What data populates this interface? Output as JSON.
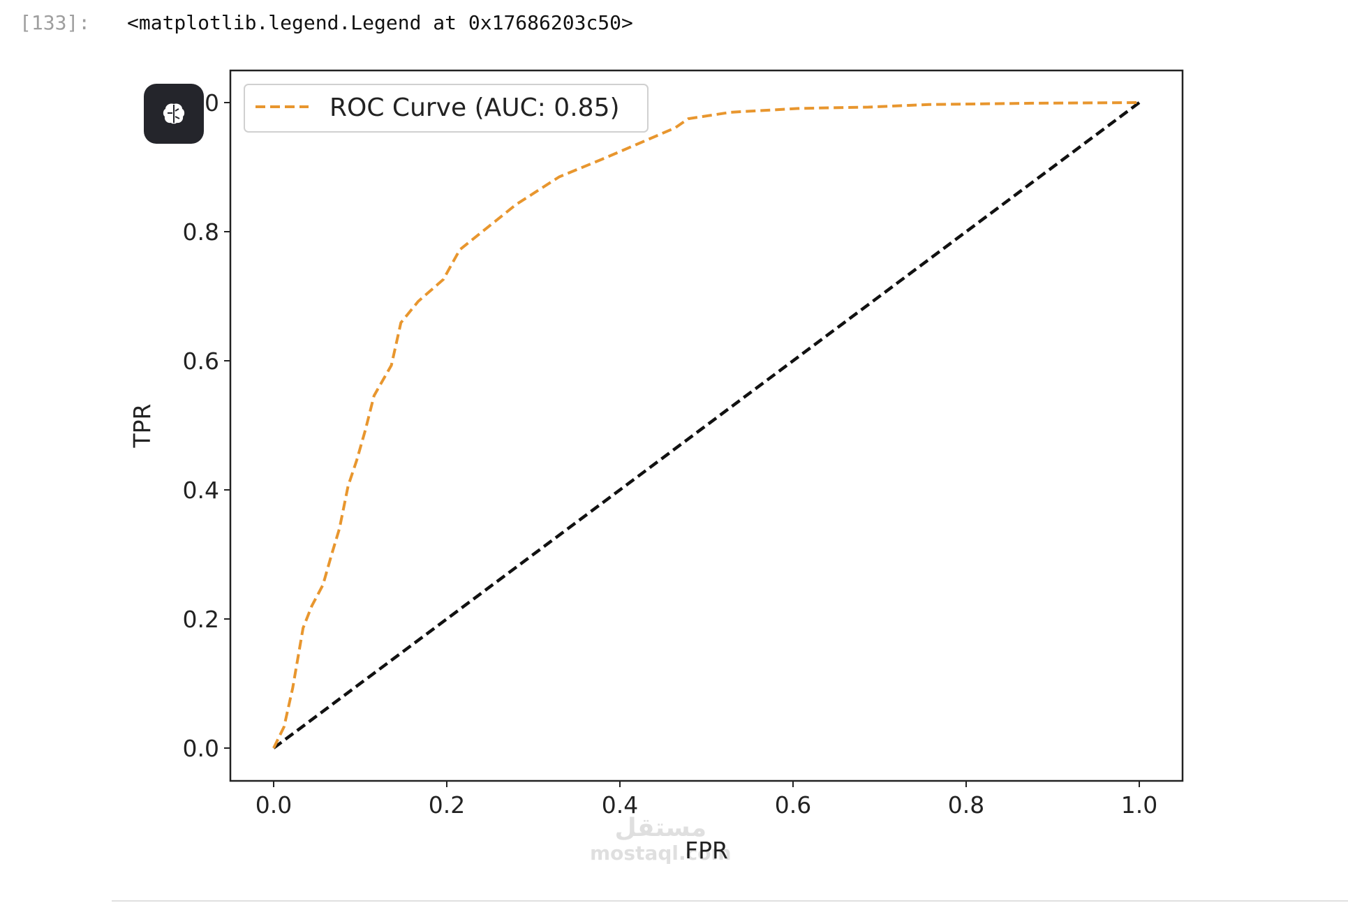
{
  "cell": {
    "prompt": "[133]:",
    "output_text": "<matplotlib.legend.Legend at 0x17686203c50>"
  },
  "badge_icon": "brain-icon",
  "watermark": "مستقل mostaql.com",
  "chart_data": {
    "type": "line",
    "title": "",
    "xlabel": "FPR",
    "ylabel": "TPR",
    "xlim": [
      -0.05,
      1.05
    ],
    "ylim": [
      -0.05,
      1.05
    ],
    "xticks": [
      "0.0",
      "0.2",
      "0.4",
      "0.6",
      "0.8",
      "1.0"
    ],
    "yticks": [
      "0.0",
      "0.2",
      "0.4",
      "0.6",
      "0.8",
      "1.0"
    ],
    "grid": false,
    "legend_position": "top-left",
    "series": [
      {
        "name": "ROC Curve (AUC: 0.85)",
        "color": "#e8962e",
        "linestyle": "dashed",
        "x": [
          0,
          0.012,
          0.022,
          0.034,
          0.044,
          0.057,
          0.067,
          0.076,
          0.086,
          0.096,
          0.106,
          0.116,
          0.136,
          0.147,
          0.167,
          0.196,
          0.215,
          0.24,
          0.28,
          0.33,
          0.379,
          0.419,
          0.464,
          0.479,
          0.528,
          0.608,
          0.687,
          0.757,
          0.876,
          1.0
        ],
        "y": [
          0,
          0.033,
          0.093,
          0.186,
          0.22,
          0.253,
          0.3,
          0.34,
          0.406,
          0.446,
          0.493,
          0.546,
          0.593,
          0.659,
          0.692,
          0.726,
          0.772,
          0.799,
          0.842,
          0.885,
          0.912,
          0.935,
          0.961,
          0.975,
          0.985,
          0.991,
          0.993,
          0.997,
          0.999,
          1.0
        ]
      },
      {
        "color": "#111111",
        "linestyle": "dashed",
        "x": [
          0,
          1
        ],
        "y": [
          0,
          1
        ]
      }
    ]
  }
}
